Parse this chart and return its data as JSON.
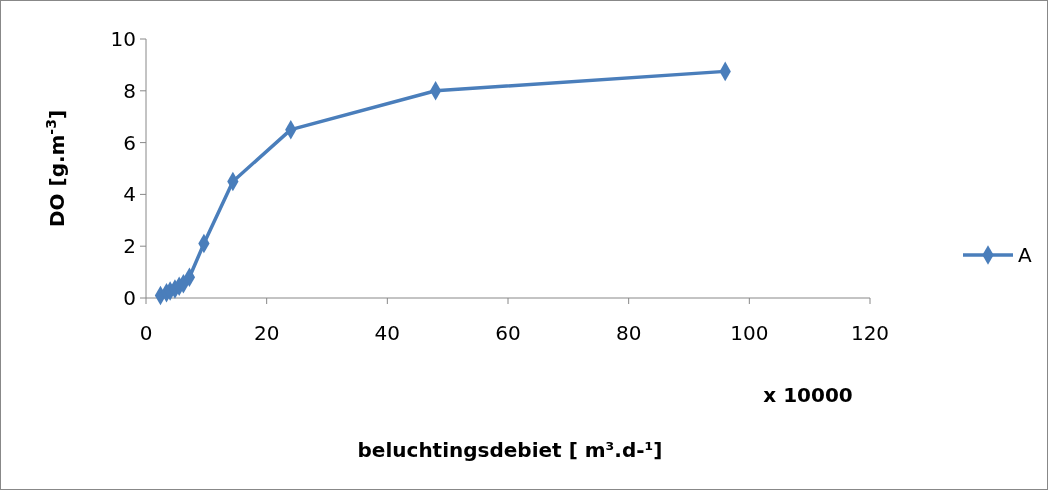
{
  "chart_data": {
    "type": "line",
    "xlabel": "beluchtingsdebiet [ m³.d-¹]",
    "ylabel": "DO [g.m$^{-3}$]",
    "annotations": [
      "x 10000"
    ],
    "series": [
      {
        "name": "A",
        "color": "#4a7ebb",
        "x": [
          2.4,
          3.4,
          4,
          4.8,
          5.5,
          6.2,
          7.2,
          9.6,
          14.4,
          24,
          48,
          96
        ],
        "values": [
          0.1,
          0.2,
          0.27,
          0.35,
          0.45,
          0.55,
          0.8,
          2.1,
          4.5,
          6.5,
          8,
          8.75
        ]
      }
    ],
    "xlim": [
      0,
      120
    ],
    "xticks": [
      0,
      20,
      40,
      60,
      80,
      100,
      120
    ],
    "ylim": [
      0,
      10
    ],
    "yticks": [
      0,
      2,
      4,
      6,
      8,
      10
    ],
    "grid": false,
    "legend": "right",
    "marker": "diamond",
    "line_style": "solid"
  }
}
